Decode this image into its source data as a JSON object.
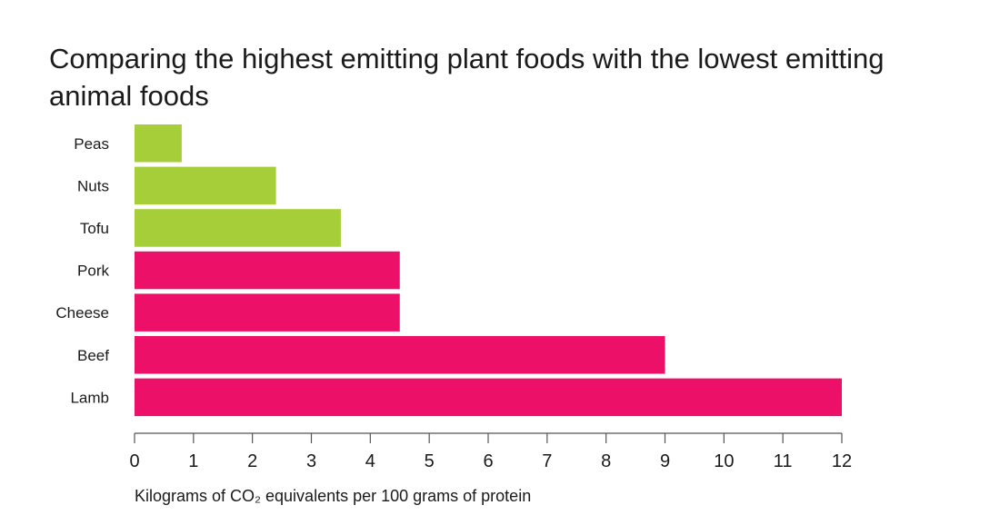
{
  "chart_data": {
    "type": "bar",
    "orientation": "horizontal",
    "title": "Comparing the highest emitting plant foods with the lowest emitting animal foods",
    "xlabel": "Kilograms of CO₂ equivalents per 100 grams of protein",
    "ylabel": "",
    "categories": [
      "Peas",
      "Nuts",
      "Tofu",
      "Pork",
      "Cheese",
      "Beef",
      "Lamb"
    ],
    "values": [
      0.8,
      2.4,
      3.5,
      4.5,
      4.5,
      9.0,
      12.0
    ],
    "groups": [
      "plant",
      "plant",
      "plant",
      "animal",
      "animal",
      "animal",
      "animal"
    ],
    "colors": {
      "plant": "#a6ce39",
      "animal": "#ec1068"
    },
    "xlim": [
      0,
      12
    ],
    "xticks": [
      0,
      1,
      2,
      3,
      4,
      5,
      6,
      7,
      8,
      9,
      10,
      11,
      12
    ],
    "grid": false,
    "legend": "none"
  }
}
